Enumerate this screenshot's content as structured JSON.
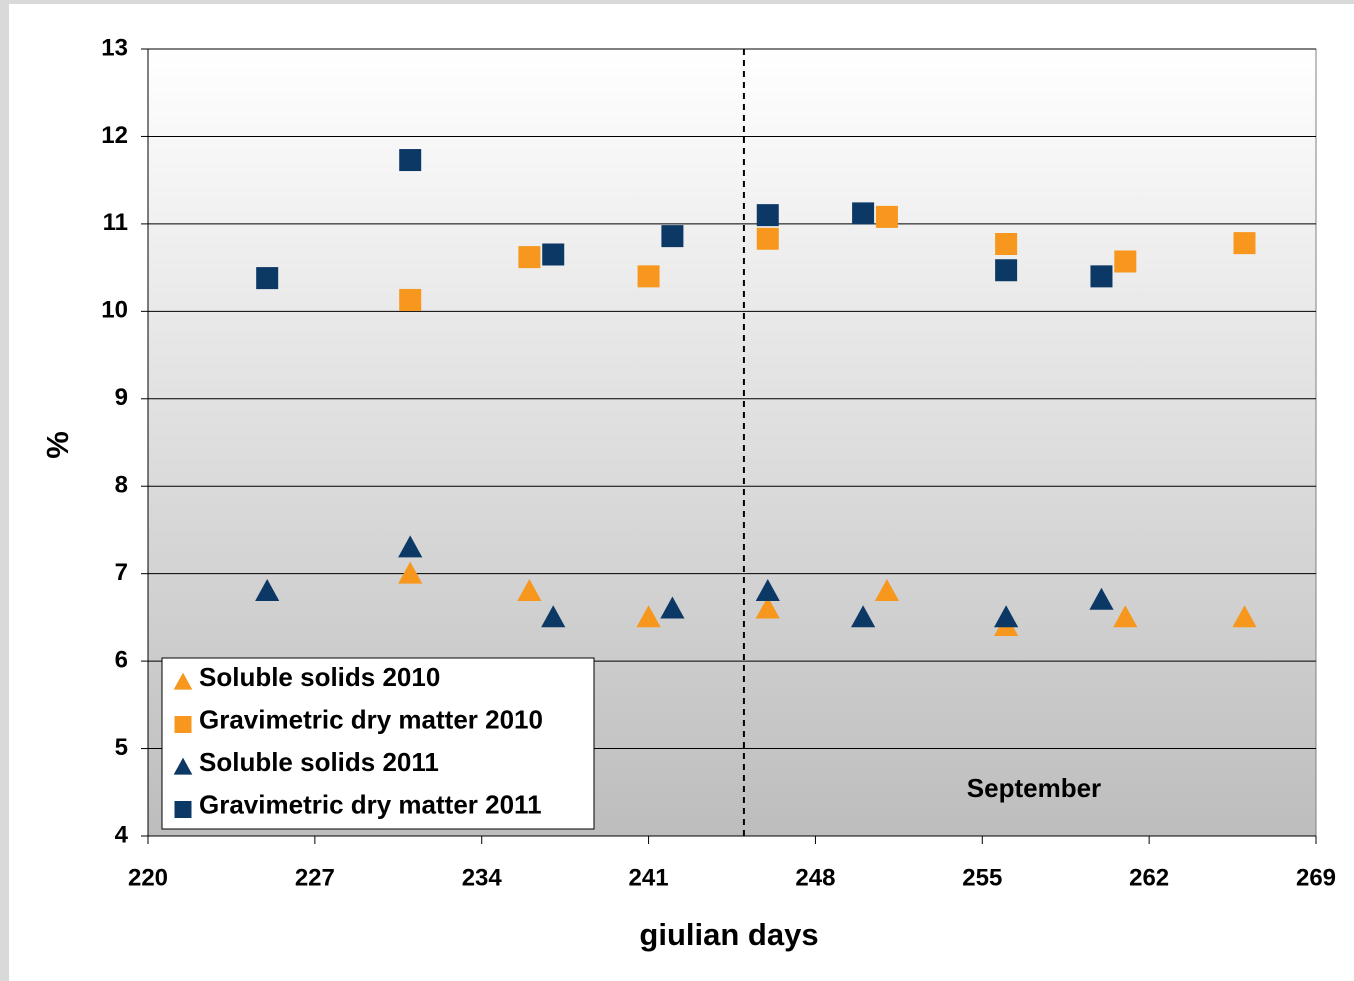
{
  "chart_data": {
    "type": "scatter",
    "xlabel": "giulian days",
    "ylabel": "%",
    "annotation": "September",
    "reference_line_x": 245,
    "xlim": [
      220,
      269
    ],
    "xticks": [
      220,
      227,
      234,
      241,
      248,
      255,
      262,
      269
    ],
    "ylim": [
      4,
      13
    ],
    "yticks": [
      4,
      5,
      6,
      7,
      8,
      9,
      10,
      11,
      12,
      13
    ],
    "grid": true,
    "legend": "lower left",
    "series": [
      {
        "name": "Soluble solids 2010",
        "color": "#f7971e",
        "marker": "triangle",
        "x": [
          231,
          236,
          241,
          246,
          251,
          256,
          261,
          266
        ],
        "values": [
          7.0,
          6.8,
          6.5,
          6.6,
          6.8,
          6.4,
          6.5,
          6.5
        ]
      },
      {
        "name": "Gravimetric dry matter 2010",
        "color": "#f7971e",
        "marker": "square",
        "x": [
          231,
          236,
          241,
          246,
          251,
          256,
          261,
          266
        ],
        "values": [
          10.13,
          10.62,
          10.4,
          10.83,
          11.08,
          10.77,
          10.57,
          10.78
        ]
      },
      {
        "name": "Soluble solids 2011",
        "color": "#0c3865",
        "marker": "triangle",
        "x": [
          225,
          231,
          237,
          242,
          246,
          250,
          256,
          260
        ],
        "values": [
          6.8,
          7.3,
          6.5,
          6.6,
          6.8,
          6.5,
          6.5,
          6.7
        ]
      },
      {
        "name": "Gravimetric dry matter 2011",
        "color": "#0c3865",
        "marker": "square",
        "x": [
          225,
          231,
          237,
          242,
          246,
          250,
          256,
          260
        ],
        "values": [
          10.38,
          11.73,
          10.65,
          10.86,
          11.1,
          11.12,
          10.47,
          10.4
        ]
      }
    ]
  }
}
